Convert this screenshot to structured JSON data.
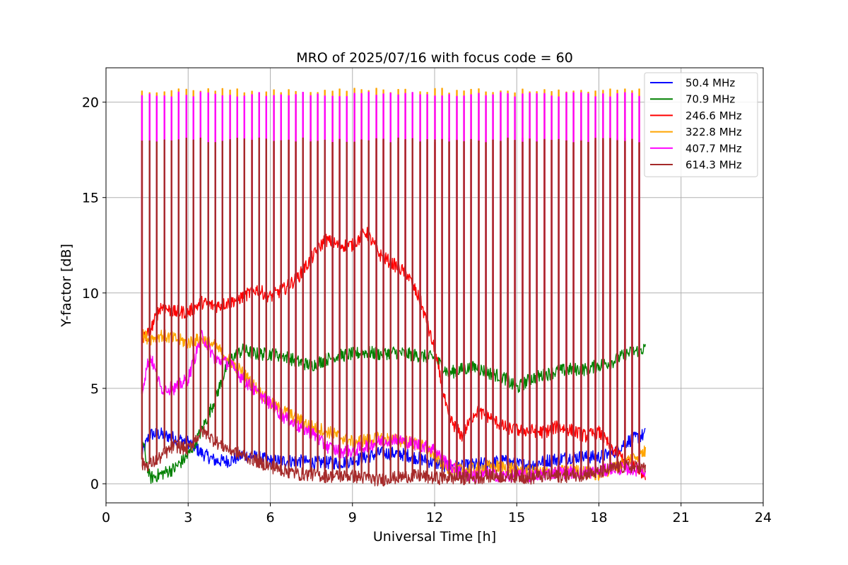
{
  "chart_data": {
    "type": "line",
    "title": "MRO of 2025/07/16 with focus code = 60",
    "xlabel": "Universal Time [h]",
    "ylabel": "Y-factor [dB]",
    "xlim": [
      0,
      24
    ],
    "ylim": [
      -1,
      21.8
    ],
    "xticks": [
      0,
      3,
      6,
      9,
      12,
      15,
      18,
      21,
      24
    ],
    "yticks": [
      0,
      5,
      10,
      15,
      20
    ],
    "grid": true,
    "legend_position": "top-right",
    "calibration_pulses": {
      "start_h": 1.3,
      "end_h": 19.7,
      "period_h": 0.267,
      "top_levels": {
        "322.8 MHz": 20.6,
        "407.7 MHz": 20.4,
        "246.6 MHz": 18.0,
        "614.3 MHz": 18.0
      }
    },
    "series": [
      {
        "name": "50.4 MHz",
        "color": "#0000ff",
        "x": [
          1.3,
          1.6,
          2.0,
          2.5,
          3.0,
          3.5,
          4.0,
          4.5,
          5.0,
          5.5,
          6.0,
          6.5,
          7.0,
          7.5,
          8.0,
          8.5,
          9.0,
          9.5,
          10.0,
          10.5,
          11.0,
          11.5,
          12.0,
          12.5,
          13.0,
          13.5,
          14.0,
          14.5,
          15.0,
          15.5,
          16.0,
          16.5,
          17.0,
          17.5,
          18.0,
          18.5,
          19.0,
          19.7
        ],
        "y": [
          1.5,
          2.6,
          2.6,
          2.4,
          2.2,
          1.6,
          1.2,
          1.2,
          1.5,
          1.4,
          1.2,
          1.2,
          1.2,
          1.1,
          1.1,
          1.1,
          1.2,
          1.4,
          1.6,
          1.6,
          1.5,
          1.3,
          1.1,
          0.9,
          0.9,
          1.0,
          1.1,
          1.2,
          1.0,
          1.0,
          1.2,
          1.3,
          1.4,
          1.4,
          1.4,
          1.6,
          2.2,
          2.6
        ]
      },
      {
        "name": "70.9 MHz",
        "color": "#008000",
        "x": [
          1.3,
          1.6,
          2.0,
          2.5,
          3.0,
          3.5,
          4.0,
          4.5,
          5.0,
          5.5,
          6.0,
          6.5,
          7.0,
          7.5,
          8.0,
          8.5,
          9.0,
          9.5,
          10.0,
          10.5,
          11.0,
          11.5,
          12.0,
          12.5,
          13.0,
          13.5,
          14.0,
          14.5,
          15.0,
          15.5,
          16.0,
          16.5,
          17.0,
          17.5,
          18.0,
          18.5,
          19.0,
          19.7
        ],
        "y": [
          2.5,
          0.3,
          0.5,
          0.8,
          1.5,
          2.8,
          4.5,
          6.5,
          7.0,
          6.8,
          6.8,
          6.7,
          6.4,
          6.2,
          6.5,
          6.7,
          6.8,
          6.9,
          6.8,
          6.9,
          6.8,
          6.7,
          6.6,
          5.8,
          6.0,
          6.1,
          5.8,
          5.6,
          5.0,
          5.5,
          5.7,
          5.9,
          6.0,
          6.0,
          6.2,
          6.4,
          6.8,
          7.1
        ]
      },
      {
        "name": "246.6 MHz",
        "color": "#ff0000",
        "x": [
          1.3,
          1.6,
          2.0,
          2.5,
          3.0,
          3.5,
          4.0,
          4.5,
          5.0,
          5.5,
          6.0,
          6.5,
          7.0,
          7.5,
          8.0,
          8.5,
          9.0,
          9.5,
          10.0,
          10.5,
          11.0,
          11.5,
          12.0,
          12.5,
          13.0,
          13.5,
          14.0,
          14.5,
          15.0,
          15.5,
          16.0,
          16.5,
          17.0,
          17.5,
          18.0,
          18.5,
          19.0,
          19.7
        ],
        "y": [
          7.5,
          8.0,
          9.3,
          9.0,
          9.0,
          9.5,
          9.3,
          9.5,
          9.8,
          10.2,
          9.8,
          10.2,
          10.8,
          11.8,
          12.8,
          12.5,
          12.5,
          13.2,
          12.0,
          11.5,
          11.0,
          9.5,
          7.0,
          3.5,
          2.5,
          3.8,
          3.5,
          3.0,
          2.8,
          2.8,
          2.7,
          3.0,
          2.8,
          2.5,
          2.7,
          1.8,
          1.2,
          0.5
        ]
      },
      {
        "name": "322.8 MHz",
        "color": "#ffa500",
        "x": [
          1.3,
          1.6,
          2.0,
          2.5,
          3.0,
          3.5,
          4.0,
          4.5,
          5.0,
          5.5,
          6.0,
          6.5,
          7.0,
          7.5,
          8.0,
          8.5,
          9.0,
          9.5,
          10.0,
          10.5,
          11.0,
          11.5,
          12.0,
          12.5,
          13.0,
          13.5,
          14.0,
          14.5,
          15.0,
          15.5,
          16.0,
          16.5,
          17.0,
          17.5,
          18.0,
          18.5,
          19.0,
          19.7
        ],
        "y": [
          7.8,
          7.6,
          7.8,
          7.6,
          7.4,
          7.6,
          7.2,
          6.5,
          5.8,
          5.0,
          4.2,
          3.8,
          3.4,
          3.0,
          2.8,
          2.5,
          2.2,
          2.3,
          2.4,
          2.3,
          2.2,
          2.0,
          1.5,
          0.8,
          0.7,
          0.8,
          0.9,
          0.9,
          0.8,
          0.6,
          0.6,
          0.6,
          0.7,
          0.6,
          0.5,
          0.8,
          1.2,
          1.7
        ]
      },
      {
        "name": "407.7 MHz",
        "color": "#ff00ff",
        "x": [
          1.3,
          1.6,
          2.0,
          2.5,
          3.0,
          3.5,
          4.0,
          4.5,
          5.0,
          5.5,
          6.0,
          6.5,
          7.0,
          7.5,
          8.0,
          8.5,
          9.0,
          9.5,
          10.0,
          10.5,
          11.0,
          11.5,
          12.0,
          12.5,
          13.0,
          13.5,
          14.0,
          14.5,
          15.0,
          15.5,
          16.0,
          16.5,
          17.0,
          17.5,
          18.0,
          18.5,
          19.0,
          19.7
        ],
        "y": [
          4.8,
          6.8,
          5.0,
          5.0,
          5.5,
          7.8,
          6.5,
          6.3,
          5.5,
          4.8,
          4.2,
          3.5,
          3.0,
          2.7,
          2.0,
          1.7,
          1.7,
          2.0,
          2.2,
          2.4,
          2.2,
          2.0,
          1.8,
          1.0,
          0.5,
          0.4,
          0.5,
          0.4,
          0.4,
          0.4,
          0.5,
          0.6,
          0.6,
          0.6,
          0.6,
          0.8,
          0.8,
          0.7
        ]
      },
      {
        "name": "614.3 MHz",
        "color": "#a52a2a",
        "x": [
          1.3,
          1.6,
          2.0,
          2.5,
          3.0,
          3.5,
          4.0,
          4.5,
          5.0,
          5.5,
          6.0,
          6.5,
          7.0,
          7.5,
          8.0,
          8.5,
          9.0,
          9.5,
          10.0,
          10.5,
          11.0,
          11.5,
          12.0,
          12.5,
          13.0,
          13.5,
          14.0,
          14.5,
          15.0,
          15.5,
          16.0,
          16.5,
          17.0,
          17.5,
          18.0,
          18.5,
          19.0,
          19.7
        ],
        "y": [
          1.0,
          1.0,
          1.4,
          2.0,
          1.8,
          2.8,
          2.2,
          1.8,
          1.5,
          1.2,
          0.9,
          0.7,
          0.5,
          0.5,
          0.4,
          0.4,
          0.4,
          0.3,
          0.2,
          0.3,
          0.4,
          0.4,
          0.3,
          0.3,
          0.3,
          0.3,
          0.4,
          0.4,
          0.4,
          0.3,
          0.4,
          0.4,
          0.4,
          0.5,
          0.6,
          0.8,
          0.9,
          0.8
        ]
      }
    ],
    "legend": [
      {
        "label": " 50.4 MHz",
        "color": "#0000ff"
      },
      {
        "label": " 70.9 MHz",
        "color": "#008000"
      },
      {
        "label": "246.6 MHz",
        "color": "#ff0000"
      },
      {
        "label": "322.8 MHz",
        "color": "#ffa500"
      },
      {
        "label": "407.7 MHz",
        "color": "#ff00ff"
      },
      {
        "label": "614.3 MHz",
        "color": "#a52a2a"
      }
    ]
  }
}
